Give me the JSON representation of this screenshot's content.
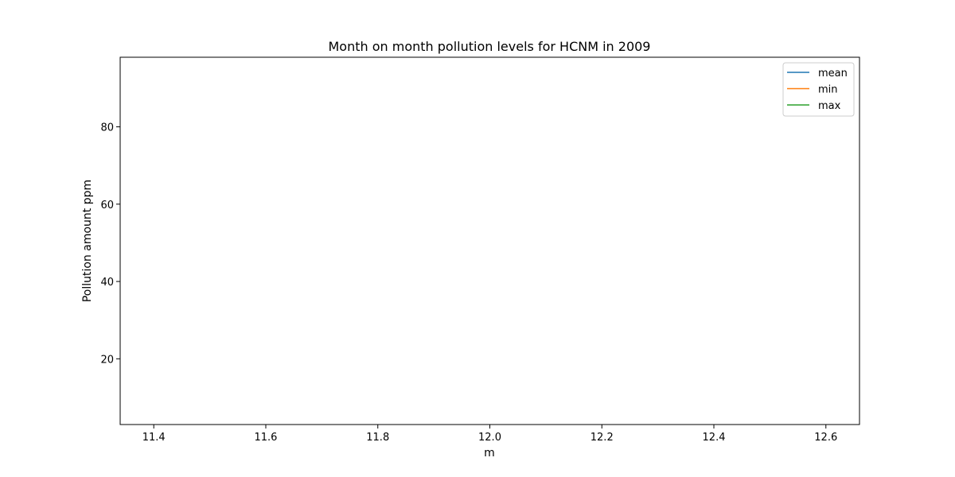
{
  "chart_data": {
    "type": "line",
    "title": "Month on month pollution levels for HCNM in 2009",
    "xlabel": "m",
    "ylabel": "Pollution amount ppm",
    "xlim": [
      11.34,
      12.66
    ],
    "ylim": [
      3.0,
      98.0
    ],
    "x_ticks": [
      11.4,
      11.6,
      11.8,
      12.0,
      12.2,
      12.4,
      12.6
    ],
    "x_tick_labels": [
      "11.4",
      "11.6",
      "11.8",
      "12.0",
      "12.2",
      "12.4",
      "12.6"
    ],
    "y_ticks": [
      20,
      40,
      60,
      80
    ],
    "y_tick_labels": [
      "20",
      "40",
      "60",
      "80"
    ],
    "grid": false,
    "legend_position": "top-right",
    "series": [
      {
        "name": "mean",
        "color": "#1f77b4",
        "x": [],
        "values": []
      },
      {
        "name": "min",
        "color": "#ff7f0e",
        "x": [],
        "values": []
      },
      {
        "name": "max",
        "color": "#2ca02c",
        "x": [],
        "values": []
      }
    ]
  }
}
